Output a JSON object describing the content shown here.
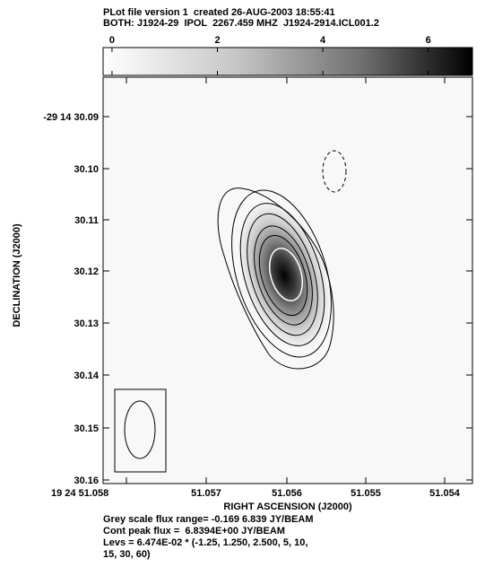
{
  "header": {
    "line1": "PLot file version 1  created 26-AUG-2003 18:55:41",
    "line2": "BOTH: J1924-29  IPOL  2267.459 MHZ  J1924-2914.ICL001.2"
  },
  "footer": {
    "line1": "Grey scale flux range= -0.169 6.839 JY/BEAM",
    "line2": "Cont peak flux =  6.8394E+00 JY/BEAM",
    "line3": "Levs = 6.474E-02 * (-1.25, 1.250, 2.500, 5, 10,",
    "line4": "15, 30, 60)"
  },
  "chart_data": {
    "type": "heatmap",
    "xlabel": "RIGHT ASCENSION (J2000)",
    "ylabel": "DECLINATION (J2000)",
    "x_ticks": [
      "19 24 51.058",
      "51.057",
      "51.056",
      "51.055",
      "51.054"
    ],
    "y_ticks": [
      "-29 14 30.09",
      "30.10",
      "30.11",
      "30.12",
      "30.13",
      "30.14",
      "30.15",
      "30.16"
    ],
    "colorbar": {
      "ticks": [
        "0",
        "2",
        "4",
        "6"
      ],
      "tick_values": [
        0,
        2,
        4,
        6
      ],
      "range": [
        -0.169,
        6.839
      ]
    },
    "grey_scale_range": [
      -0.169,
      6.839
    ],
    "peak_flux": 6.8394,
    "contour_base": 0.06474,
    "contour_multipliers": [
      -1.25,
      1.25,
      2.5,
      5,
      10,
      15,
      30,
      60
    ],
    "source_position": {
      "ra_s": 51.056,
      "dec_s": 30.121
    },
    "colors": {
      "frame": "#000000",
      "peak_contour": "#ffffff"
    }
  }
}
